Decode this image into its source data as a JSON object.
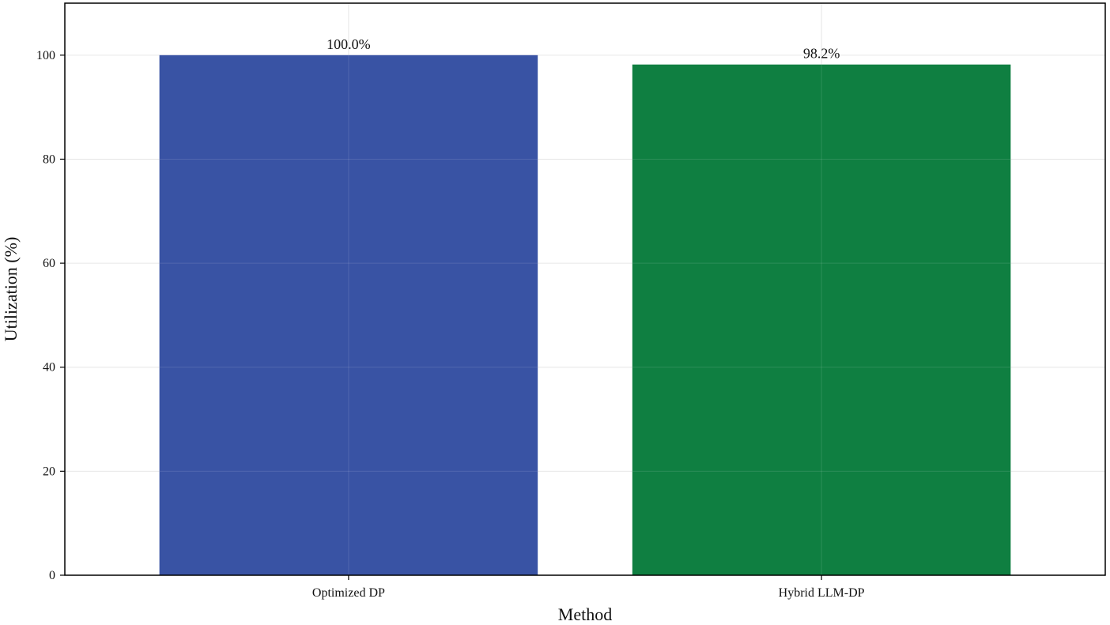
{
  "chart_data": {
    "type": "bar",
    "categories": [
      "Optimized DP",
      "Hybrid LLM-DP"
    ],
    "values": [
      100.0,
      98.2
    ],
    "data_labels": [
      "100.0%",
      "98.2%"
    ],
    "colors": [
      "#3953a4",
      "#0f7f41"
    ],
    "title": "",
    "xlabel": "Method",
    "ylabel": "Utilization (%)",
    "ylim": [
      0,
      110
    ],
    "yticks": [
      0,
      20,
      40,
      60,
      80,
      100
    ],
    "ytick_labels": [
      "0",
      "20",
      "40",
      "60",
      "80",
      "100"
    ],
    "grid": true,
    "legend": "none"
  }
}
